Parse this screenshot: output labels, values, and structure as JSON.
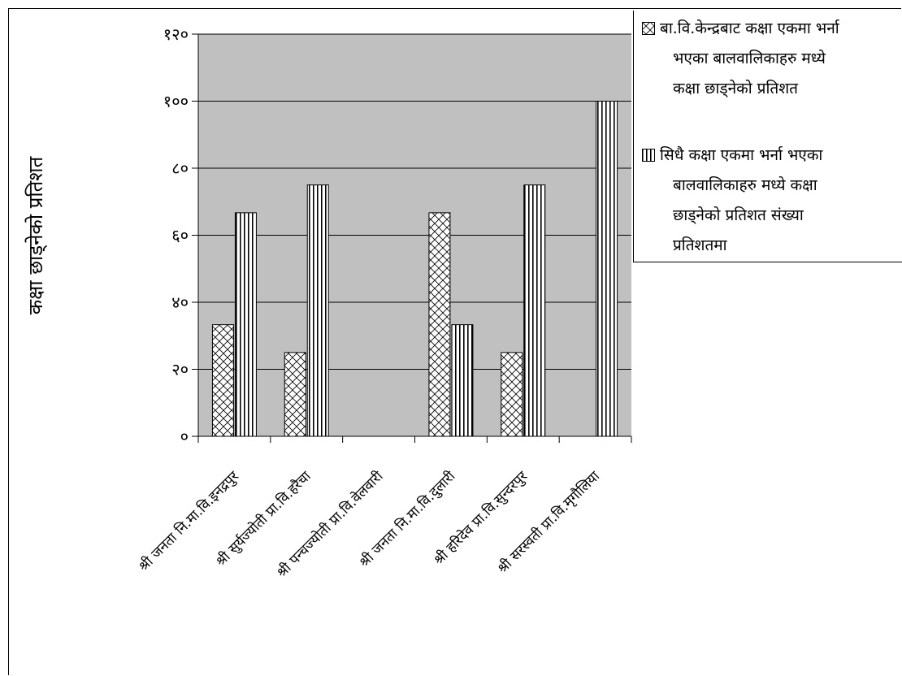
{
  "chart_data": {
    "type": "bar",
    "ylabel": "कक्षा छाड्नेको प्रतिशत",
    "yticks": [
      "०",
      "२०",
      "४०",
      "६०",
      "८०",
      "१००",
      "१२०"
    ],
    "ylim": [
      0,
      120
    ],
    "grid": true,
    "legend_position": "top-right",
    "categories": [
      "श्री जनता नि.मा.वि.इनद्रपुर",
      "श्री सुर्यज्योती प्रा.वि.हरैचा",
      "श्री पन्चज्योती प्रा.वि.वेलवारी",
      "श्री जनता नि.मा.वि.दुलारी",
      "श्री हरिदेव प्रा.वि.सुन्दरपुर",
      "श्री सरस्वती प्रा.वि.मृगौलिया"
    ],
    "series": [
      {
        "name": "बा.वि.केन्द्रबाट कक्षा एकमा भर्ना भएका बालवालिकाहरु मध्ये कक्षा छाड्नेको प्रतिशत",
        "name_lines": [
          "बा.वि.केन्द्रबाट कक्षा एकमा भर्ना",
          "भएका बालवालिकाहरु मध्ये",
          "कक्षा छाड्नेको प्रतिशत"
        ],
        "pattern": "crosshatch",
        "values": [
          33.3,
          25,
          0,
          66.7,
          25,
          0
        ]
      },
      {
        "name": "सिधै कक्षा एकमा भर्ना भएका बालवालिकाहरु मध्ये कक्षा छाड्नेको प्रतिशत संख्या प्रतिशतमा",
        "name_lines": [
          "सिधै कक्षा एकमा भर्ना भएका",
          "बालवालिकाहरु मध्ये कक्षा",
          "छाड्नेको प्रतिशत  संख्या",
          "प्रतिशतमा"
        ],
        "pattern": "vertical-stripes",
        "values": [
          66.7,
          75,
          0,
          33.3,
          75,
          100
        ]
      }
    ],
    "colors": {
      "plot_background": "#c0c0c0",
      "bar_fill": "#ffffff",
      "gridline": "#000000"
    }
  }
}
